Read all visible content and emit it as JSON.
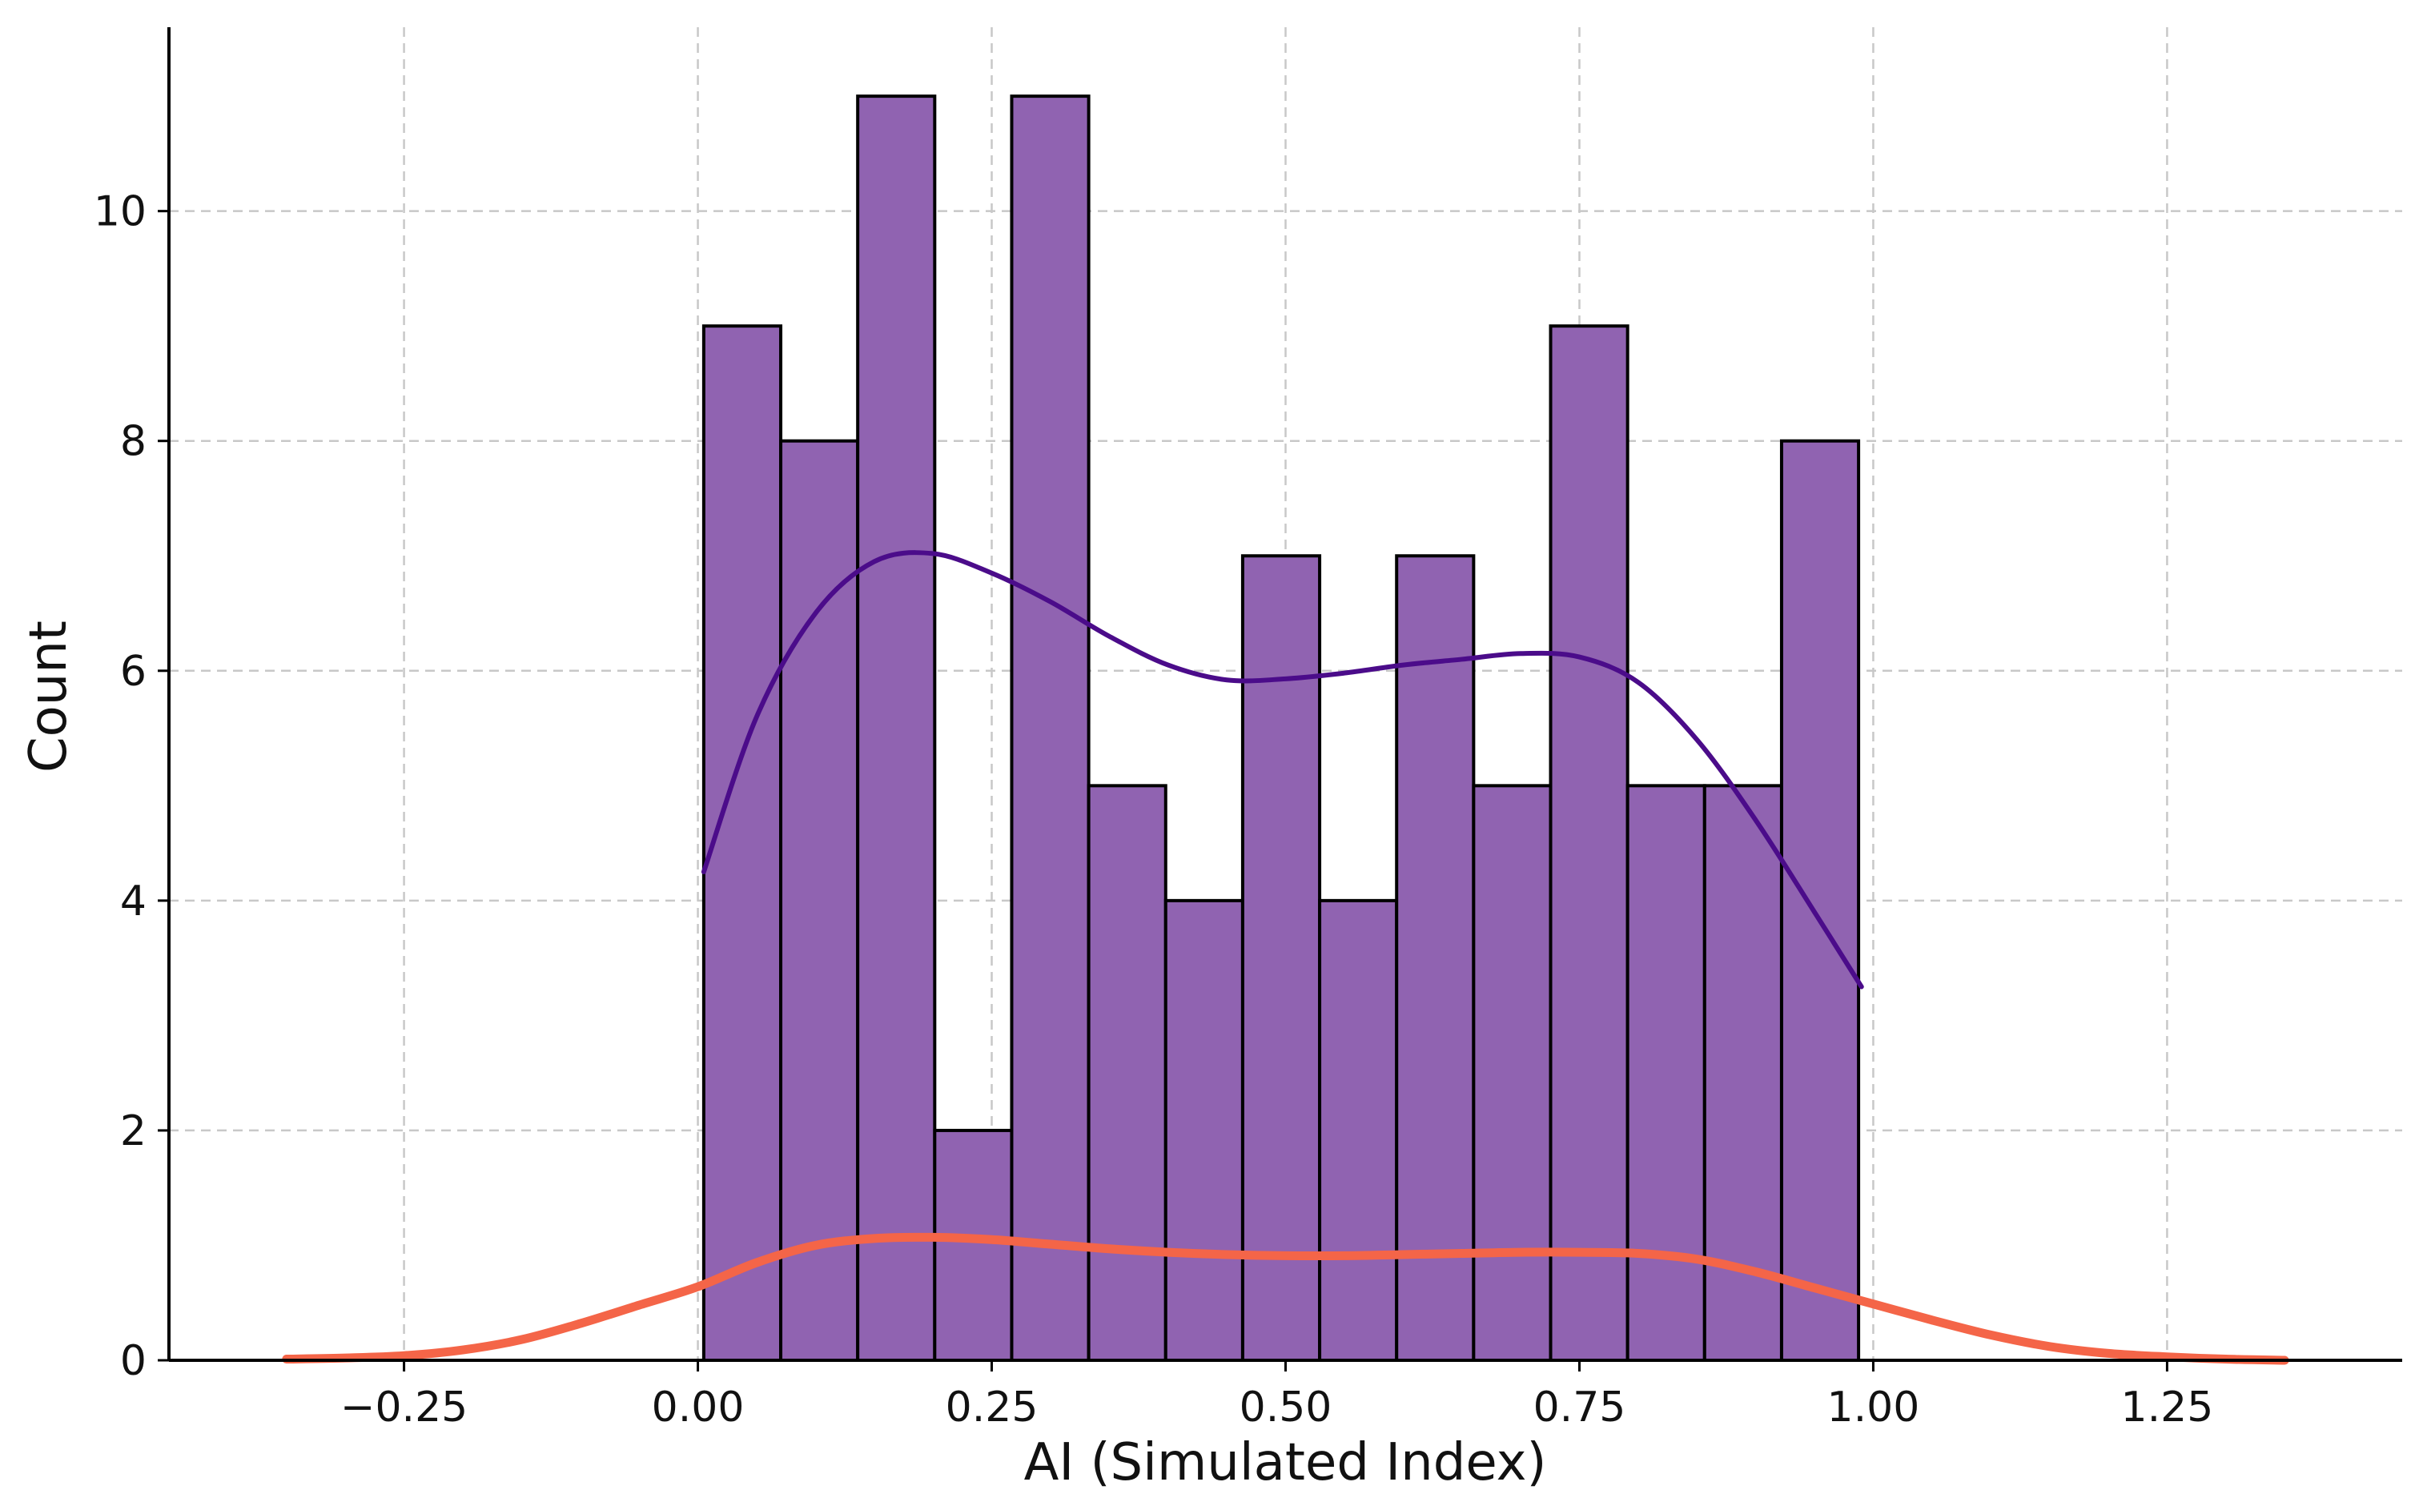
{
  "chart_data": {
    "type": "bar",
    "subtype": "histogram_with_kde",
    "title": "",
    "xlabel": "AI (Simulated Index)",
    "ylabel": "Count",
    "xlim": [
      -0.45,
      1.45
    ],
    "ylim": [
      0,
      11.6
    ],
    "grid": true,
    "grid_style": "dashed",
    "legend": "none",
    "x_ticks": [
      -0.25,
      0.0,
      0.25,
      0.5,
      0.75,
      1.0,
      1.25
    ],
    "x_tick_labels": [
      "−0.25",
      "0.00",
      "0.25",
      "0.50",
      "0.75",
      "1.00",
      "1.25"
    ],
    "y_ticks": [
      0,
      2,
      4,
      6,
      8,
      10
    ],
    "y_tick_labels": [
      "0",
      "2",
      "4",
      "6",
      "8",
      "10"
    ],
    "bins": {
      "edges": [
        0.005,
        0.0705,
        0.136,
        0.2015,
        0.267,
        0.3325,
        0.398,
        0.4635,
        0.529,
        0.5945,
        0.66,
        0.7255,
        0.791,
        0.8565,
        0.922,
        0.9875
      ],
      "counts": [
        9,
        8,
        11,
        2,
        11,
        5,
        4,
        7,
        4,
        7,
        5,
        9,
        5,
        5,
        8
      ]
    },
    "series": [
      {
        "type": "line",
        "role": "kde-on-histogram",
        "x": [
          0.005,
          0.05,
          0.1,
          0.15,
          0.2,
          0.25,
          0.3,
          0.35,
          0.4,
          0.45,
          0.5,
          0.55,
          0.6,
          0.65,
          0.7,
          0.75,
          0.8,
          0.85,
          0.9,
          0.95,
          0.99
        ],
        "values": [
          4.25,
          5.6,
          6.5,
          6.95,
          7.02,
          6.85,
          6.6,
          6.3,
          6.05,
          5.92,
          5.93,
          5.98,
          6.05,
          6.1,
          6.15,
          6.12,
          5.9,
          5.4,
          4.7,
          3.9,
          3.25
        ]
      },
      {
        "type": "line",
        "role": "kde-density",
        "x": [
          -0.35,
          -0.3,
          -0.25,
          -0.2,
          -0.15,
          -0.1,
          -0.05,
          0.0,
          0.05,
          0.1,
          0.15,
          0.2,
          0.25,
          0.3,
          0.35,
          0.4,
          0.45,
          0.5,
          0.55,
          0.6,
          0.65,
          0.7,
          0.75,
          0.8,
          0.85,
          0.9,
          0.95,
          1.0,
          1.05,
          1.1,
          1.15,
          1.2,
          1.25,
          1.3,
          1.35
        ],
        "values": [
          0.01,
          0.02,
          0.04,
          0.09,
          0.18,
          0.32,
          0.48,
          0.64,
          0.85,
          1.0,
          1.06,
          1.07,
          1.05,
          1.01,
          0.97,
          0.94,
          0.92,
          0.91,
          0.91,
          0.92,
          0.93,
          0.94,
          0.94,
          0.93,
          0.88,
          0.77,
          0.63,
          0.49,
          0.35,
          0.22,
          0.12,
          0.06,
          0.03,
          0.01,
          0.0
        ]
      }
    ],
    "colors": {
      "bar_fill": "#9063b1",
      "bar_edge": "#000000",
      "kde_line": "#4b0c8a",
      "density_line": "#f46548",
      "grid": "#c8c8c8",
      "axis": "#000000",
      "text": "#111111"
    }
  }
}
